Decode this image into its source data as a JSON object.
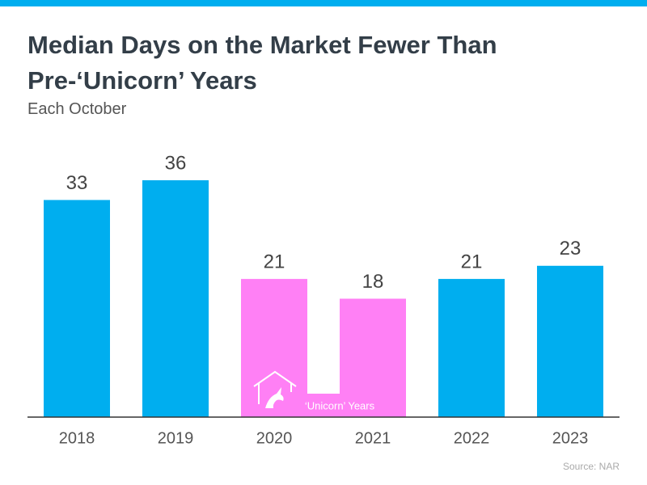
{
  "chart_data": {
    "type": "bar",
    "title": "Median Days on the Market Fewer Than Pre-‘Unicorn’ Years",
    "subtitle": "Each October",
    "categories": [
      "2018",
      "2019",
      "2020",
      "2021",
      "2022",
      "2023"
    ],
    "values": [
      33,
      36,
      21,
      18,
      21,
      23
    ],
    "colors": [
      "#00aeef",
      "#00aeef",
      "#ff80f5",
      "#ff80f5",
      "#00aeef",
      "#00aeef"
    ],
    "annotation": "‘Unicorn’ Years",
    "source": "Source: NAR"
  }
}
